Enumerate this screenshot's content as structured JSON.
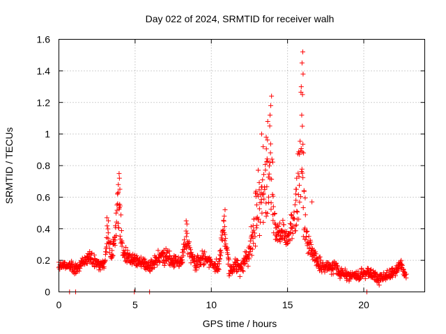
{
  "chart_data": {
    "type": "scatter",
    "title": "Day 022 of 2024, SRMTID for receiver walh",
    "xlabel": "GPS time / hours",
    "ylabel": "SRMTID / TECUs",
    "xlim": [
      0,
      24
    ],
    "ylim": [
      0,
      1.6
    ],
    "x_ticks": [
      0,
      5,
      10,
      15,
      20
    ],
    "x_tick_labels": [
      "0",
      "5",
      "10",
      "15",
      "20"
    ],
    "y_ticks": [
      0,
      0.2,
      0.4,
      0.6,
      0.8,
      1.0,
      1.2,
      1.4,
      1.6
    ],
    "y_tick_labels": [
      "0",
      "0.2",
      "0.4",
      "0.6",
      "0.8",
      "1",
      "1.2",
      "1.4",
      "1.6"
    ],
    "grid": true,
    "marker": "plus",
    "color": "#ff0000",
    "series": [
      {
        "name": "walh",
        "envelope": [
          [
            0.0,
            0.17,
            0.03
          ],
          [
            0.8,
            0.17,
            0.03
          ],
          [
            1.0,
            0.14,
            0.04
          ],
          [
            1.5,
            0.18,
            0.04
          ],
          [
            2.0,
            0.22,
            0.05
          ],
          [
            2.5,
            0.18,
            0.04
          ],
          [
            3.0,
            0.17,
            0.05
          ],
          [
            3.2,
            0.35,
            0.12
          ],
          [
            3.5,
            0.22,
            0.05
          ],
          [
            3.9,
            0.55,
            0.2
          ],
          [
            4.2,
            0.25,
            0.06
          ],
          [
            4.6,
            0.22,
            0.05
          ],
          [
            5.0,
            0.2,
            0.05
          ],
          [
            5.5,
            0.18,
            0.05
          ],
          [
            6.0,
            0.16,
            0.05
          ],
          [
            6.5,
            0.22,
            0.05
          ],
          [
            7.0,
            0.22,
            0.06
          ],
          [
            7.5,
            0.2,
            0.05
          ],
          [
            8.0,
            0.18,
            0.05
          ],
          [
            8.3,
            0.35,
            0.08
          ],
          [
            8.7,
            0.22,
            0.06
          ],
          [
            9.0,
            0.18,
            0.05
          ],
          [
            9.5,
            0.22,
            0.06
          ],
          [
            10.0,
            0.17,
            0.05
          ],
          [
            10.5,
            0.17,
            0.05
          ],
          [
            10.8,
            0.42,
            0.08
          ],
          [
            11.2,
            0.13,
            0.05
          ],
          [
            11.6,
            0.18,
            0.06
          ],
          [
            12.0,
            0.15,
            0.07
          ],
          [
            12.5,
            0.25,
            0.09
          ],
          [
            13.0,
            0.55,
            0.25
          ],
          [
            13.5,
            0.65,
            0.25
          ],
          [
            13.9,
            0.8,
            0.3
          ],
          [
            14.2,
            0.35,
            0.1
          ],
          [
            14.6,
            0.38,
            0.1
          ],
          [
            15.0,
            0.35,
            0.08
          ],
          [
            15.5,
            0.45,
            0.15
          ],
          [
            15.9,
            0.9,
            0.5
          ],
          [
            16.2,
            0.35,
            0.1
          ],
          [
            16.6,
            0.25,
            0.08
          ],
          [
            17.0,
            0.18,
            0.06
          ],
          [
            17.5,
            0.15,
            0.05
          ],
          [
            18.0,
            0.16,
            0.05
          ],
          [
            18.5,
            0.12,
            0.04
          ],
          [
            19.0,
            0.1,
            0.04
          ],
          [
            19.5,
            0.1,
            0.04
          ],
          [
            20.0,
            0.12,
            0.04
          ],
          [
            20.5,
            0.12,
            0.04
          ],
          [
            21.0,
            0.08,
            0.04
          ],
          [
            21.5,
            0.1,
            0.04
          ],
          [
            22.0,
            0.13,
            0.04
          ],
          [
            22.4,
            0.18,
            0.04
          ],
          [
            22.8,
            0.1,
            0.03
          ]
        ],
        "peaks": [
          [
            16.0,
            1.52
          ],
          [
            15.95,
            1.45
          ],
          [
            16.02,
            1.38
          ],
          [
            15.9,
            1.3
          ],
          [
            15.98,
            1.25
          ],
          [
            15.93,
            1.12
          ],
          [
            15.97,
            1.05
          ],
          [
            16.05,
            0.88
          ],
          [
            13.95,
            1.24
          ],
          [
            13.9,
            1.18
          ],
          [
            13.85,
            1.12
          ],
          [
            13.7,
            1.08
          ],
          [
            13.6,
            0.98
          ],
          [
            13.3,
            1.0
          ],
          [
            13.4,
            0.92
          ],
          [
            3.95,
            0.75
          ],
          [
            3.97,
            0.72
          ],
          [
            3.9,
            0.68
          ],
          [
            4.0,
            0.65
          ],
          [
            3.85,
            0.62
          ],
          [
            16.6,
            0.57
          ],
          [
            15.6,
            0.72
          ],
          [
            15.55,
            0.65
          ],
          [
            10.9,
            0.52
          ],
          [
            10.85,
            0.48
          ],
          [
            8.35,
            0.45
          ],
          [
            8.4,
            0.43
          ],
          [
            3.15,
            0.47
          ],
          [
            3.25,
            0.45
          ]
        ],
        "zeros": [
          0.7,
          1.1,
          4.95,
          5.95,
          20.2
        ]
      }
    ]
  }
}
